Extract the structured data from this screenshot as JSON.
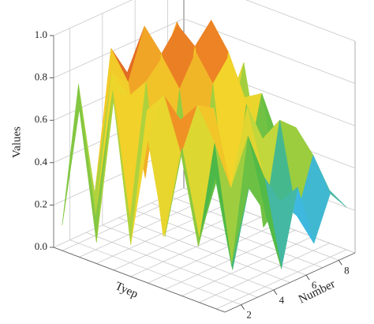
{
  "chart_data": {
    "type": "surface",
    "xlabel": "Tyep",
    "ylabel": "Number",
    "zlabel": "Values",
    "categories": [
      null,
      null,
      null,
      null,
      null,
      null,
      null,
      null,
      null,
      null
    ],
    "y": [
      1,
      2,
      3,
      4,
      5,
      6,
      7,
      8,
      9
    ],
    "ylim": [
      1,
      9
    ],
    "yticks": [
      2,
      4,
      6,
      8
    ],
    "zlim": [
      0,
      1
    ],
    "zticks": [
      {
        "value": 0,
        "label": "0.0"
      },
      {
        "value": 0.2,
        "label": "0.2"
      },
      {
        "value": 0.4,
        "label": "0.4"
      },
      {
        "value": 0.6,
        "label": "0.6"
      },
      {
        "value": 0.8,
        "label": "0.8"
      },
      {
        "value": 1,
        "label": "1.0"
      }
    ],
    "values": [
      [
        0.12,
        0.75,
        0.2,
        0.85,
        0.7,
        0.8,
        0.65,
        0.78,
        0.6
      ],
      [
        0.7,
        0.15,
        0.8,
        0.72,
        0.95,
        0.5,
        0.9,
        0.7,
        0.75
      ],
      [
        0.1,
        0.78,
        0.72,
        0.3,
        0.85,
        0.95,
        0.6,
        0.82,
        0.45
      ],
      [
        0.8,
        0.2,
        0.82,
        0.9,
        0.4,
        0.88,
        0.97,
        0.3,
        0.7
      ],
      [
        0.15,
        0.75,
        0.12,
        0.78,
        0.92,
        0.35,
        0.85,
        0.6,
        0.25
      ],
      [
        0.68,
        0.85,
        0.7,
        0.2,
        0.8,
        0.9,
        0.3,
        0.65,
        0.4
      ],
      [
        0.25,
        0.6,
        0.8,
        0.75,
        0.1,
        0.7,
        0.5,
        0.2,
        0.35
      ],
      [
        0.7,
        0.2,
        0.65,
        0.4,
        0.75,
        0.15,
        0.62,
        0.55,
        0.3
      ],
      [
        0.3,
        0.55,
        0.1,
        0.68,
        0.45,
        0.3,
        0.2,
        0.45,
        0.25
      ],
      [
        0.6,
        0.15,
        0.5,
        0.35,
        0.05,
        0.4,
        0.1,
        0.3,
        0.2
      ]
    ],
    "colormap": [
      "#4b1f8c",
      "#3a5bc7",
      "#3fb8e0",
      "#4cb848",
      "#c8d93a",
      "#f2d42a",
      "#f08a24",
      "#d0451f",
      "#8e1f1c"
    ],
    "grid": true
  }
}
